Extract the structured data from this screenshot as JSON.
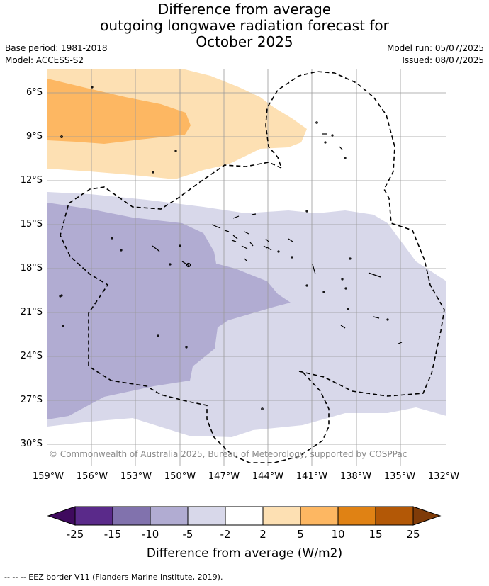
{
  "title": {
    "line1": "Difference from average",
    "line2": "outgoing longwave radiation forecast for",
    "line3": "October 2025"
  },
  "meta": {
    "base_period": "Base period: 1981-2018",
    "model": "Model: ACCESS-S2",
    "model_run": "Model run: 05/07/2025",
    "issued": "Issued: 08/07/2025"
  },
  "map": {
    "lat_ticks": [
      "6°S",
      "9°S",
      "12°S",
      "15°S",
      "18°S",
      "21°S",
      "24°S",
      "27°S",
      "30°S"
    ],
    "lon_ticks": [
      "159°W",
      "156°W",
      "153°W",
      "150°W",
      "147°W",
      "144°W",
      "141°W",
      "138°W",
      "135°W",
      "132°W"
    ],
    "copyright": "© Commonwealth of Australia 2025, Bureau of Meteorology, supported by COSPPac",
    "colors": {
      "neg_5_10": "#b1acd2",
      "neg_2_5": "#d8d8ea",
      "pos_2_5": "#fde0b3",
      "pos_5_10": "#fdb762",
      "border": "#000000",
      "grid": "#9a9a9a"
    }
  },
  "colorbar": {
    "title": "Difference from average (W/m2)",
    "labels": [
      "-25",
      "-15",
      "-10",
      "-5",
      "-2",
      "2",
      "5",
      "10",
      "15",
      "25"
    ],
    "colors": [
      "#3f0a5e",
      "#5a2a8a",
      "#8172ad",
      "#b1acd2",
      "#d8d8ea",
      "#ffffff",
      "#fde0b3",
      "#fdb762",
      "#e08214",
      "#b35806",
      "#7f3b08"
    ]
  },
  "footnote": "-- -- -- EEZ border V11 (Flanders Marine Institute, 2019)."
}
